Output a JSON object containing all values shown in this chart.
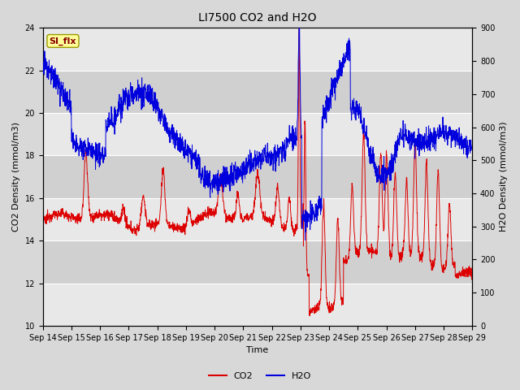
{
  "title": "LI7500 CO2 and H2O",
  "xlabel": "Time",
  "ylabel_left": "CO2 Density (mmol/m3)",
  "ylabel_right": "H2O Density (mmol/m3)",
  "xlim": [
    0,
    15
  ],
  "ylim_left": [
    10,
    24
  ],
  "ylim_right": [
    0,
    900
  ],
  "yticks_left": [
    10,
    12,
    14,
    16,
    18,
    20,
    22,
    24
  ],
  "yticks_right": [
    0,
    100,
    200,
    300,
    400,
    500,
    600,
    700,
    800,
    900
  ],
  "xtick_labels": [
    "Sep 14",
    "Sep 15",
    "Sep 16",
    "Sep 17",
    "Sep 18",
    "Sep 19",
    "Sep 20",
    "Sep 21",
    "Sep 22",
    "Sep 23",
    "Sep 24",
    "Sep 25",
    "Sep 26",
    "Sep 27",
    "Sep 28",
    "Sep 29"
  ],
  "co2_color": "#dd0000",
  "h2o_color": "#0000dd",
  "bg_color": "#d8d8d8",
  "plot_bg_color_light": "#e8e8e8",
  "plot_bg_color_dark": "#d0d0d0",
  "annotation_text": "SI_flx",
  "annotation_color": "#880000",
  "annotation_bg": "#ffff99",
  "annotation_edge": "#999900",
  "legend_co2": "CO2",
  "legend_h2o": "H2O",
  "title_fontsize": 10,
  "axis_fontsize": 8,
  "tick_fontsize": 7,
  "legend_fontsize": 8
}
